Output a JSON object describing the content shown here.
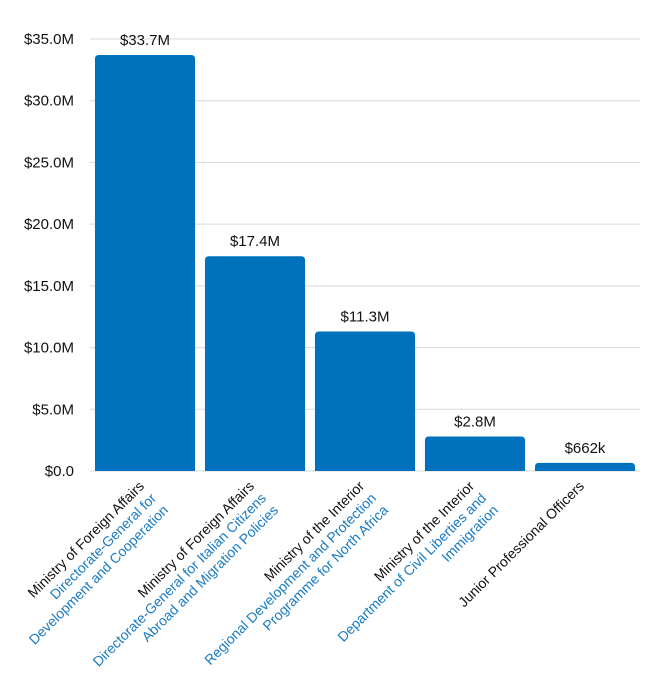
{
  "chart_data": {
    "type": "bar",
    "title": "",
    "xlabel": "",
    "ylabel": "",
    "ylim": [
      0,
      35000000
    ],
    "grid": true,
    "y_ticks": [
      "$0.0",
      "$5.0M",
      "$10.0M",
      "$15.0M",
      "$20.0M",
      "$25.0M",
      "$30.0M",
      "$35.0M"
    ],
    "categories": [
      {
        "main": "Ministry of Foreign Affairs",
        "sub": [
          "Directorate-General for",
          "Development and Cooperation"
        ]
      },
      {
        "main": "Ministry of Foreign Affairs",
        "sub": [
          "Directorate-General for Italian Citizens",
          "Abroad and Migration Policies"
        ]
      },
      {
        "main": "Ministry of the Interior",
        "sub": [
          "Regional Development and Protection",
          "Programme for North Africa"
        ]
      },
      {
        "main": "Ministry of the Interior",
        "sub": [
          "Department of Civil Liberties and",
          "Immigration"
        ]
      },
      {
        "main": "Junior Professional Officers",
        "sub": []
      }
    ],
    "values": [
      33700000,
      17400000,
      11300000,
      2800000,
      662000
    ],
    "value_labels": [
      "$33.7M",
      "$17.4M",
      "$11.3M",
      "$2.8M",
      "$662k"
    ],
    "colors": {
      "bar": "#0071bc",
      "sub_label": "#1a7ac2",
      "grid": "#d9d9d9"
    }
  }
}
